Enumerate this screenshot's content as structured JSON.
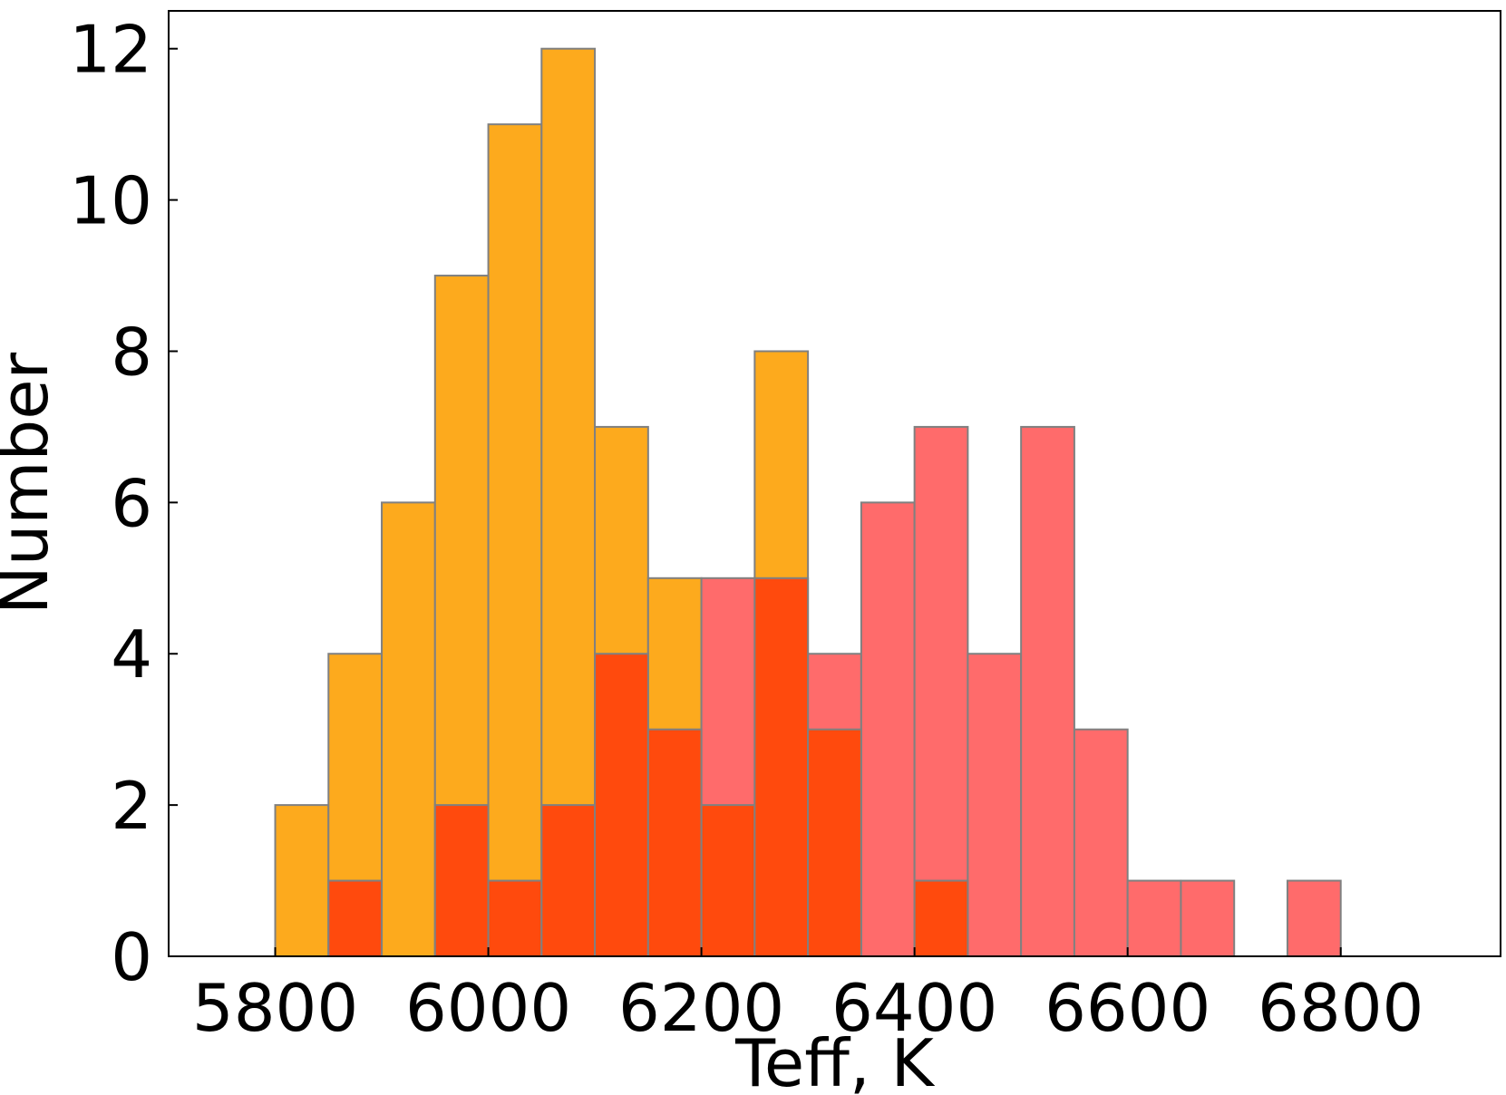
{
  "chart_data": {
    "type": "bar",
    "subtype": "overlaid-histogram",
    "title": "",
    "xlabel": "Teff, K",
    "ylabel": "Number",
    "xlim": [
      5700,
      6950
    ],
    "ylim": [
      0,
      12.5
    ],
    "bin_width": 50,
    "xticks": [
      5800,
      6000,
      6200,
      6400,
      6600,
      6800
    ],
    "yticks": [
      0,
      2,
      4,
      6,
      8,
      10,
      12
    ],
    "grid": false,
    "legend": "none",
    "tick_direction": "in",
    "series": [
      {
        "color": "#FDAA1D",
        "bins": [
          {
            "x0": 5800,
            "x1": 5850,
            "count": 2
          },
          {
            "x0": 5850,
            "x1": 5900,
            "count": 4
          },
          {
            "x0": 5900,
            "x1": 5950,
            "count": 6
          },
          {
            "x0": 5950,
            "x1": 6000,
            "count": 9
          },
          {
            "x0": 6000,
            "x1": 6050,
            "count": 11
          },
          {
            "x0": 6050,
            "x1": 6100,
            "count": 12
          },
          {
            "x0": 6100,
            "x1": 6150,
            "count": 7
          },
          {
            "x0": 6150,
            "x1": 6200,
            "count": 5
          },
          {
            "x0": 6250,
            "x1": 6300,
            "count": 8
          }
        ]
      },
      {
        "color": "#FF6B6B",
        "bins": [
          {
            "x0": 6200,
            "x1": 6250,
            "count": 5
          },
          {
            "x0": 6300,
            "x1": 6350,
            "count": 4
          },
          {
            "x0": 6350,
            "x1": 6400,
            "count": 6
          },
          {
            "x0": 6400,
            "x1": 6450,
            "count": 7
          },
          {
            "x0": 6450,
            "x1": 6500,
            "count": 4
          },
          {
            "x0": 6500,
            "x1": 6550,
            "count": 7
          },
          {
            "x0": 6550,
            "x1": 6600,
            "count": 3
          },
          {
            "x0": 6600,
            "x1": 6650,
            "count": 1
          },
          {
            "x0": 6650,
            "x1": 6700,
            "count": 1
          },
          {
            "x0": 6750,
            "x1": 6800,
            "count": 1
          }
        ]
      },
      {
        "color": "#FF4A0D",
        "bins": [
          {
            "x0": 5850,
            "x1": 5900,
            "count": 1
          },
          {
            "x0": 5950,
            "x1": 6000,
            "count": 2
          },
          {
            "x0": 6000,
            "x1": 6050,
            "count": 1
          },
          {
            "x0": 6050,
            "x1": 6100,
            "count": 2
          },
          {
            "x0": 6100,
            "x1": 6150,
            "count": 4
          },
          {
            "x0": 6150,
            "x1": 6200,
            "count": 3
          },
          {
            "x0": 6200,
            "x1": 6250,
            "count": 2
          },
          {
            "x0": 6250,
            "x1": 6300,
            "count": 5
          },
          {
            "x0": 6300,
            "x1": 6350,
            "count": 3
          },
          {
            "x0": 6400,
            "x1": 6450,
            "count": 1
          }
        ]
      }
    ]
  }
}
